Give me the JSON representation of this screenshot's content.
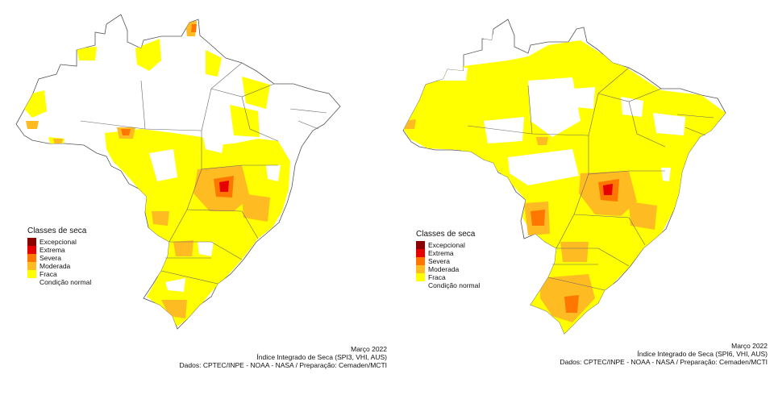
{
  "legend_classes": [
    {
      "label": "Excepcional",
      "color": "#8b0000"
    },
    {
      "label": "Extrema",
      "color": "#e60000"
    },
    {
      "label": "Severa",
      "color": "#ff7700"
    },
    {
      "label": "Moderada",
      "color": "#ffbb22"
    },
    {
      "label": "Fraca",
      "color": "#ffff00"
    },
    {
      "label": "Condição normal",
      "color": "#ffffff"
    }
  ],
  "maps": [
    {
      "legend_title": "Classes de seca",
      "caption": {
        "date": "Março 2022",
        "index": "Índice Integrado de Seca (SPI3, VHI, AUS)",
        "source": "Dados: CPTEC/INPE - NOAA - NASA / Preparação: Cemaden/MCTI"
      }
    },
    {
      "legend_title": "Classes de seca",
      "caption": {
        "date": "Março 2022",
        "index": "Índice Integrado de Seca (SPI6, VHI, AUS)",
        "source": "Dados: CPTEC/INPE - NOAA - NASA / Preparação: Cemaden/MCTI"
      }
    }
  ]
}
